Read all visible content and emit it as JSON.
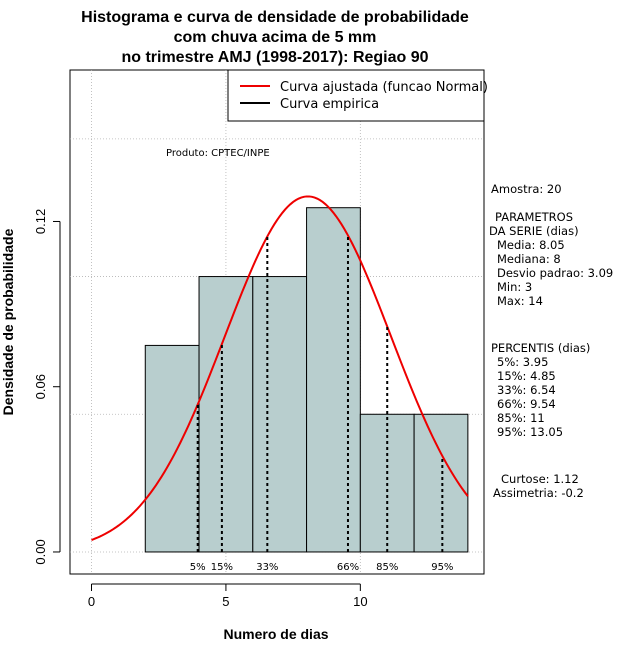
{
  "chart_data": {
    "type": "bar",
    "title": [
      "Histograma e curva de densidade de probabilidade",
      "com chuva acima de 5 mm",
      "no trimestre AMJ (1998-2017): Regiao 90"
    ],
    "xlabel": "Numero de dias",
    "ylabel": "Densidade de probabilidade",
    "xlim": [
      -0.8,
      14.6
    ],
    "ylim": [
      -0.008,
      0.175
    ],
    "xticks": [
      "0",
      "5",
      "10"
    ],
    "xtick_values": [
      0,
      5,
      10
    ],
    "yticks": [
      "0.00",
      "0.06",
      "0.12"
    ],
    "ytick_values": [
      0.0,
      0.06,
      0.12
    ],
    "grid": true,
    "bins": [
      {
        "x0": 2,
        "x1": 4,
        "density": 0.075
      },
      {
        "x0": 4,
        "x1": 6,
        "density": 0.1
      },
      {
        "x0": 6,
        "x1": 8,
        "density": 0.1
      },
      {
        "x0": 8,
        "x1": 10,
        "density": 0.125
      },
      {
        "x0": 10,
        "x1": 12,
        "density": 0.05
      },
      {
        "x0": 12,
        "x1": 14,
        "density": 0.05
      }
    ],
    "normal_curve": {
      "mean": 8.05,
      "sd": 3.09,
      "x_from": 0,
      "x_to": 14,
      "color": "#ee0000"
    },
    "percentiles": [
      {
        "label": "5%",
        "value": 3.95
      },
      {
        "label": "15%",
        "value": 4.85
      },
      {
        "label": "33%",
        "value": 6.54
      },
      {
        "label": "66%",
        "value": 9.54
      },
      {
        "label": "85%",
        "value": 11
      },
      {
        "label": "95%",
        "value": 13.05
      }
    ],
    "legend": {
      "position": "top-right",
      "items": [
        {
          "label": "Curva ajustada (funcao Normal)",
          "color": "#ee0000"
        },
        {
          "label": "Curva empirica",
          "color": "#000000"
        }
      ]
    },
    "credit": "Produto: CPTEC/INPE",
    "bar_color": "#b8cece"
  },
  "side_panel": {
    "amostra": "Amostra: 20",
    "parametros_title_1": "PARAMETROS",
    "parametros_title_2": "DA SERIE (dias)",
    "media": "Media: 8.05",
    "mediana": "Mediana: 8",
    "desvio": "Desvio padrao: 3.09",
    "min": "Min: 3",
    "max": "Max: 14",
    "percentis_title": "PERCENTIS (dias)",
    "p5": "5%: 3.95",
    "p15": "15%: 4.85",
    "p33": "33%: 6.54",
    "p66": "66%: 9.54",
    "p85": "85%: 11",
    "p95": "95%: 13.05",
    "curtose": "Curtose: 1.12",
    "assimetria": "Assimetria: -0.2"
  }
}
